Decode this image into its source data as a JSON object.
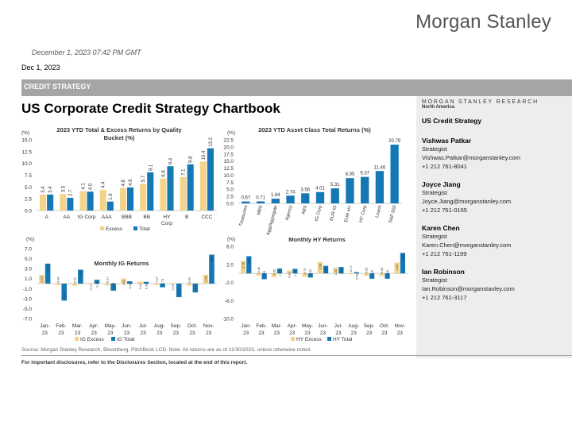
{
  "header": {
    "logo": "Morgan Stanley",
    "timestamp": "December 1, 2023 07:42 PM GMT",
    "date": "Dec 1, 2023",
    "banner": "CREDIT STRATEGY",
    "title": "US Corporate Credit Strategy Chartbook"
  },
  "research_panel": {
    "heading": "MORGAN STANLEY RESEARCH",
    "region": "North America",
    "team": "US Credit Strategy",
    "analysts": [
      {
        "name": "Vishwas Patkar",
        "role": "Strategist",
        "email": "Vishwas.Patkar@morganstanley.com",
        "phone": "+1 212 761-8041"
      },
      {
        "name": "Joyce Jiang",
        "role": "Strategist",
        "email": "Joyce.Jiang@morganstanley.com",
        "phone": "+1 212 761-0165"
      },
      {
        "name": "Karen Chen",
        "role": "Strategist",
        "email": "Karen.Chen@morganstanley.com",
        "phone": "+1 212 761-1199"
      },
      {
        "name": "Ian Robinson",
        "role": "Strategist",
        "email": "Ian.Robinson@morganstanley.com",
        "phone": "+1 212 761-3117"
      }
    ]
  },
  "footer": {
    "source": "Source: Morgan Stanley Research, Bloomberg, PitchBook LCD. Note: All returns are as of 11/30/2023, unless otherwise noted.",
    "disclaimer": "For important disclosures, refer to the Disclosures Section, located at the end of this report."
  },
  "colors": {
    "excess": "#f4d38a",
    "total": "#1478b4",
    "banner": "#a5a5a5"
  },
  "chart_data": [
    {
      "id": "quality",
      "type": "bar",
      "title": "2023 YTD Total & Excess Returns by Quality Bucket  (%)",
      "ylabel": "(%)",
      "ylim": [
        0,
        15
      ],
      "yticks": [
        0,
        2.5,
        5,
        7.5,
        10,
        12.5,
        15
      ],
      "ytick_labels": [
        "0.0",
        "2.5",
        "5.0",
        "7.5",
        "10.0",
        "12.5",
        "15.0"
      ],
      "categories": [
        "A",
        "AA",
        "IG Corp",
        "AAA",
        "BBB",
        "BB",
        "HY Corp",
        "B",
        "CCC"
      ],
      "series": [
        {
          "name": "Excess",
          "values": [
            3.4,
            3.5,
            4.1,
            4.4,
            4.8,
            5.7,
            6.8,
            7.1,
            10.4
          ],
          "labels": [
            "3.4",
            "3.5",
            "4.1",
            "4.4",
            "4.8",
            "5.7",
            "6.8",
            "7.1",
            "10.4"
          ]
        },
        {
          "name": "Total",
          "values": [
            3.4,
            2.7,
            4.0,
            1.9,
            4.9,
            8.1,
            9.4,
            9.8,
            13.2
          ],
          "labels": [
            "3.4",
            "2.7",
            "4.0",
            "1.9",
            "4.9",
            "8.1",
            "9.4",
            "9.8",
            "13.2"
          ]
        }
      ]
    },
    {
      "id": "asset",
      "type": "bar",
      "title": "2023 YTD Asset Class Total Returns  (%)",
      "ylabel": "(%)",
      "ylim": [
        0,
        22.5
      ],
      "yticks": [
        0,
        2.5,
        5,
        7.5,
        10,
        12.5,
        15,
        17.5,
        20,
        22.5
      ],
      "ytick_labels": [
        "0.0",
        "2.5",
        "5.0",
        "7.5",
        "10.0",
        "12.5",
        "15.0",
        "17.5",
        "20.0",
        "22.5"
      ],
      "categories": [
        "Treasuries",
        "MBS",
        "Agg/Aggregate",
        "Agency",
        "ABS",
        "IG Corp",
        "EUR IG",
        "EUR HY",
        "HY Corp",
        "Loans",
        "S&P 500"
      ],
      "series": [
        {
          "name": "Total",
          "values": [
            0.67,
            0.71,
            1.64,
            2.74,
            3.56,
            4.01,
            5.31,
            8.95,
            9.37,
            11.46,
            20.79
          ],
          "labels": [
            "0.67",
            "0.71",
            "1.64",
            "2.74",
            "3.56",
            "4.01",
            "5.31",
            "8.95",
            "9.37",
            "11.46",
            "20.79"
          ]
        }
      ]
    },
    {
      "id": "ig_monthly",
      "type": "bar",
      "title": "Monthly  IG Returns",
      "ylabel": "(%)",
      "ylim": [
        -7,
        7
      ],
      "yticks": [
        -7,
        -5,
        -3,
        -1,
        1,
        3,
        5,
        7
      ],
      "ytick_labels": [
        "-7.0",
        "-5.0",
        "-3.0",
        "-1.0",
        "1.0",
        "3.0",
        "5.0",
        "7.0"
      ],
      "categories": [
        "Jan-23",
        "Feb-23",
        "Mar-23",
        "Apr-23",
        "May-23",
        "Jun-23",
        "Jul-23",
        "Aug-23",
        "Sep-23",
        "Oct-23",
        "Nov-23"
      ],
      "series": [
        {
          "name": "IG Excess",
          "values": [
            1.73,
            -0.34,
            -0.42,
            0.17,
            -0.37,
            1.03,
            0.41,
            -0.27,
            0.15,
            -0.42,
            1.79
          ],
          "labels": [
            "1.73",
            "-0.34",
            "-0.42",
            "0.17",
            "-0.37",
            "1.03",
            "0.41",
            "-0.27",
            "0.15",
            "-0.42",
            "1.79"
          ]
        },
        {
          "name": "IG Total",
          "values": [
            4.0,
            -3.4,
            2.79,
            0.77,
            -1.41,
            0.46,
            0.36,
            -0.73,
            -2.72,
            -1.77,
            5.8
          ],
          "labels": [
            "4.01",
            "-3.41",
            "2.79",
            "0.77",
            "-1.41",
            "0.46",
            "0.36",
            "-0.73",
            "-2.72",
            "-1.77",
            "5.83"
          ]
        }
      ]
    },
    {
      "id": "hy_monthly",
      "type": "bar",
      "title": "Monthly  HY Returns",
      "ylabel": "(%)",
      "ylim": [
        -10,
        6
      ],
      "yticks": [
        -10,
        -6,
        -2,
        2,
        6
      ],
      "ytick_labels": [
        "-10.0",
        "-6.0",
        "-2.0",
        "2.0",
        "6.0"
      ],
      "categories": [
        "Jan-23",
        "Feb-23",
        "Mar-23",
        "Apr-23",
        "May-23",
        "Jun-23",
        "Jul-23",
        "Aug-23",
        "Sep-23",
        "Oct-23",
        "Nov-23"
      ],
      "series": [
        {
          "name": "HY Excess",
          "values": [
            2.78,
            -0.46,
            -0.81,
            0.63,
            -0.73,
            2.54,
            1.24,
            -0.17,
            -0.55,
            -0.55,
            2.4
          ],
          "labels": [
            "2.78",
            "-0.46",
            "-0.81",
            "0.63",
            "-0.73",
            "2.54",
            "1.24",
            "-0.17",
            "-0.55",
            "-0.55",
            "2.40"
          ]
        },
        {
          "name": "HY Total",
          "values": [
            3.81,
            -1.29,
            1.07,
            1.0,
            -0.92,
            1.67,
            1.41,
            0.28,
            -1.18,
            -1.18,
            4.53
          ],
          "labels": [
            "3.81",
            "-1.29",
            "1.07",
            "1.00",
            "-0.92",
            "1.67",
            "1.41",
            "0.28",
            "-1.18",
            "-1.18",
            "4.53"
          ]
        }
      ]
    }
  ]
}
